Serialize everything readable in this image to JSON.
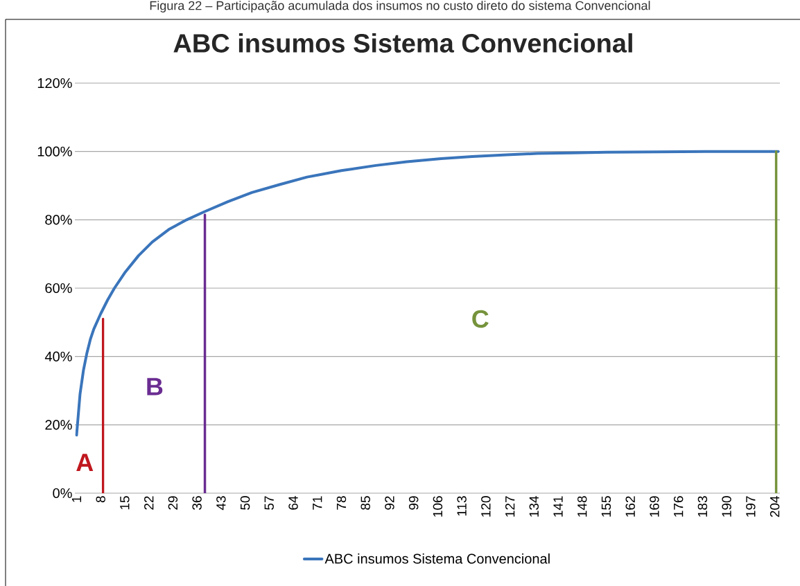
{
  "chart_data": {
    "type": "line",
    "title": "ABC insumos Sistema Convencional",
    "annotations": [
      "Figura 22 – Participação acumulada dos insumos no custo direto do sistema Convencional",
      "A",
      "B",
      "C"
    ],
    "series": [
      {
        "name": "ABC insumos Sistema Convencional",
        "color": "#3a75bb",
        "x": [
          1,
          2,
          3,
          4,
          5,
          6,
          8,
          10,
          12,
          15,
          19,
          23,
          28,
          33,
          38,
          45,
          52,
          60,
          68,
          78,
          88,
          97,
          107,
          116,
          126,
          135,
          145,
          155,
          170,
          185,
          205
        ],
        "values": [
          17,
          29,
          36,
          41,
          45,
          48,
          52.5,
          56.5,
          60,
          64.5,
          69.5,
          73.5,
          77.3,
          80,
          82.3,
          85.3,
          88,
          90.3,
          92.5,
          94.4,
          95.9,
          97,
          97.9,
          98.5,
          99,
          99.4,
          99.6,
          99.8,
          99.9,
          100,
          100
        ]
      },
      {
        "color": "#c0171e",
        "x": [
          8.7,
          8.7
        ],
        "values": [
          0,
          51
        ]
      },
      {
        "color": "#6a2c91",
        "x": [
          38.3,
          38.3
        ],
        "values": [
          0,
          81.5
        ]
      },
      {
        "color": "#76933c",
        "x": [
          204.4,
          204.4
        ],
        "values": [
          0,
          100
        ]
      }
    ],
    "xlim": [
      0.5,
      205.5
    ],
    "xticks": [
      1,
      8,
      15,
      22,
      29,
      36,
      43,
      50,
      57,
      64,
      71,
      78,
      85,
      92,
      99,
      106,
      113,
      120,
      127,
      134,
      141,
      148,
      155,
      162,
      169,
      176,
      183,
      190,
      197,
      204
    ],
    "ylim": [
      0,
      120
    ],
    "yticks": [
      {
        "value": 0,
        "label": "0%"
      },
      {
        "value": 20,
        "label": "20%"
      },
      {
        "value": 40,
        "label": "40%"
      },
      {
        "value": 60,
        "label": "60%"
      },
      {
        "value": 80,
        "label": "80%"
      },
      {
        "value": 100,
        "label": "100%"
      },
      {
        "value": 120,
        "label": "120%"
      }
    ],
    "grid": "y",
    "legend": "bottom",
    "marker": "none",
    "line_style": "solid"
  }
}
